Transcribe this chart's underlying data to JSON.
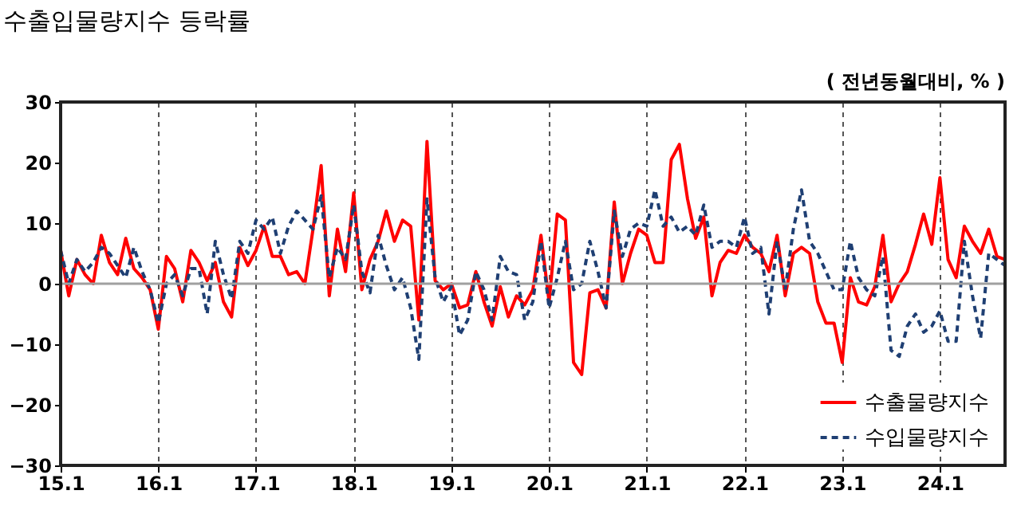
{
  "chart_data": {
    "type": "line",
    "title": "수출입물량지수 등락률",
    "annotations": [
      "( 전년동월대비, % )"
    ],
    "categories": [
      "15.1",
      null,
      null,
      null,
      null,
      null,
      null,
      null,
      null,
      null,
      null,
      null,
      "16.1",
      null,
      null,
      null,
      null,
      null,
      null,
      null,
      null,
      null,
      null,
      null,
      "17.1",
      null,
      null,
      null,
      null,
      null,
      null,
      null,
      null,
      null,
      null,
      null,
      "18.1",
      null,
      null,
      null,
      null,
      null,
      null,
      null,
      null,
      null,
      null,
      null,
      "19.1",
      null,
      null,
      null,
      null,
      null,
      null,
      null,
      null,
      null,
      null,
      null,
      "20.1",
      null,
      null,
      null,
      null,
      null,
      null,
      null,
      null,
      null,
      null,
      null,
      "21.1",
      null,
      null,
      null,
      null,
      null,
      null,
      null,
      null,
      null,
      null,
      null,
      "22.1",
      null,
      null,
      null,
      null,
      null,
      null,
      null,
      null,
      null,
      null,
      null,
      "23.1",
      null,
      null,
      null,
      null,
      null,
      null,
      null,
      null,
      null,
      null,
      null,
      "24.1",
      null,
      null,
      null,
      null,
      null,
      null,
      null,
      null
    ],
    "series": [
      {
        "name": "수출물량지수",
        "color": "#ff0000",
        "line_style": "solid",
        "values": [
          5.5,
          -2,
          4,
          1.5,
          0,
          8,
          3.5,
          1.5,
          7.5,
          2.5,
          1,
          -1,
          -7.5,
          4.5,
          2.5,
          -3,
          5.5,
          3.5,
          0.5,
          3.5,
          -3,
          -5.5,
          6,
          3,
          5.5,
          9.5,
          4.5,
          4.5,
          1.5,
          2,
          0,
          9,
          19.5,
          -2,
          9,
          2,
          15,
          -1,
          4,
          7,
          12,
          7,
          10.5,
          9.5,
          -6,
          23.5,
          0.5,
          -1,
          0,
          -4,
          -3.5,
          2,
          -3,
          -7,
          -0.5,
          -5.5,
          -2,
          -3.5,
          -1,
          8,
          -3,
          11.5,
          10.5,
          -13,
          -15,
          -1.5,
          -1,
          -4,
          13.5,
          0,
          5,
          9,
          8,
          3.5,
          3.5,
          20.5,
          23,
          14,
          7.5,
          11,
          -2,
          3.5,
          5.5,
          5,
          8,
          6,
          5,
          2,
          8,
          -2,
          5,
          6,
          5,
          -3,
          -6.5,
          -6.5,
          -13,
          1,
          -3,
          -3.5,
          -0.5,
          8,
          -3,
          0,
          2,
          6.5,
          11.5,
          6.5,
          17.5,
          4,
          1,
          9.5,
          7,
          5,
          9,
          4.5,
          4
        ]
      },
      {
        "name": "수입물량지수",
        "color": "#1f3f73",
        "line_style": "dashed",
        "values": [
          5.5,
          0,
          4,
          2,
          3.5,
          6,
          5,
          3,
          1,
          6,
          2,
          -1,
          -6.5,
          0,
          1.5,
          -2,
          2.5,
          2.5,
          -5,
          7,
          1.5,
          -2.5,
          7,
          5,
          10.5,
          9,
          11,
          5,
          9.5,
          12,
          10.5,
          9,
          14.5,
          1,
          6,
          4,
          13,
          2,
          -1.5,
          8,
          3,
          -1,
          1,
          -4,
          -12.5,
          14,
          1,
          -3,
          -0.5,
          -8.5,
          -6,
          2,
          -1,
          -6,
          4.5,
          2,
          1.5,
          -6,
          -3,
          7,
          -4,
          1,
          7,
          -1,
          0,
          7,
          2,
          -4,
          12,
          4.5,
          9,
          10,
          9.5,
          15.5,
          9.5,
          11,
          8.5,
          9.5,
          8,
          13,
          6,
          7,
          7,
          6,
          11,
          5,
          6,
          -5,
          7,
          -1,
          9,
          15.5,
          7,
          5,
          2,
          -1,
          -1,
          7,
          1,
          -1,
          -2,
          4.5,
          -11,
          -12,
          -7,
          -5,
          -8,
          -7,
          -4.5,
          -9.5,
          -9.5,
          7,
          -2,
          -9,
          5,
          4,
          3
        ]
      }
    ],
    "ylim": [
      -30,
      30
    ],
    "yticks": [
      -30,
      -20,
      -10,
      0,
      10,
      20,
      30
    ],
    "grid": "x",
    "legend": "bottom right",
    "ref_lines": [
      {
        "axis": "y",
        "value": 0,
        "color": "#a0a0a0"
      }
    ]
  }
}
